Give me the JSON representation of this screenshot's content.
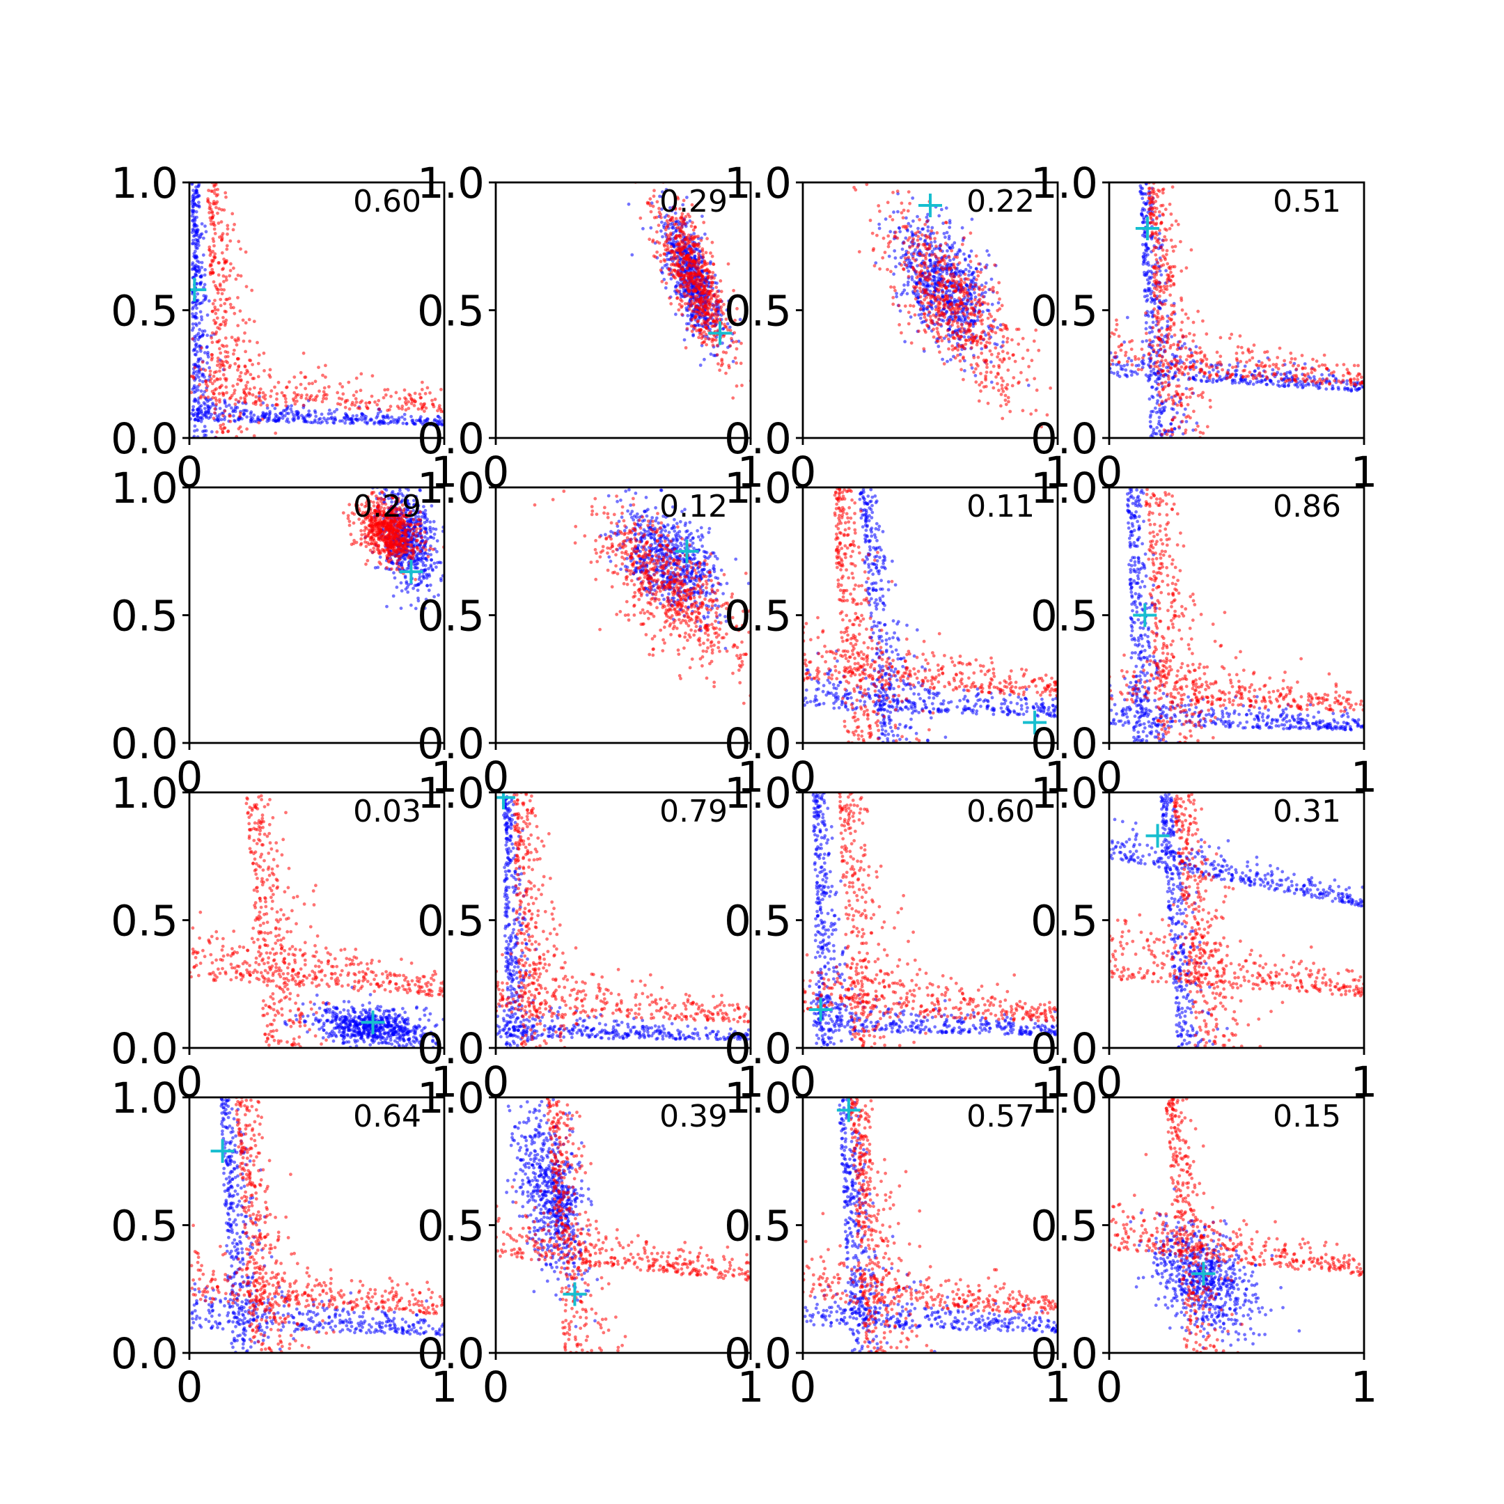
{
  "figure": {
    "background": "#ffffff",
    "series_colors": {
      "blue": "#0000ff",
      "red": "#ff0000",
      "marker": "#17becf"
    }
  },
  "chart_data": [
    {
      "type": "scatter",
      "value_label": "0.60",
      "marker": [
        0.02,
        0.58
      ],
      "xlim": [
        0,
        1
      ],
      "ylim": [
        0,
        1
      ],
      "xticks": [
        "0",
        "1"
      ],
      "yticks": [
        "0.0",
        "0.5",
        "1.0"
      ],
      "series": [
        {
          "color": "#0000ff",
          "shape": "L",
          "knee": [
            0.01,
            0.05
          ],
          "spread": 0.025,
          "n": 700
        },
        {
          "color": "#ff0000",
          "shape": "L",
          "knee": [
            0.07,
            0.1
          ],
          "spread": 0.06,
          "n": 550
        }
      ]
    },
    {
      "type": "scatter",
      "value_label": "0.29",
      "marker": [
        0.88,
        0.41
      ],
      "xlim": [
        0,
        1
      ],
      "ylim": [
        0,
        1
      ],
      "xticks": [
        "0",
        "1"
      ],
      "yticks": [
        "0.0",
        "0.5",
        "1.0"
      ],
      "series": [
        {
          "color": "#0000ff",
          "shape": "blob",
          "center": [
            0.77,
            0.62
          ],
          "sd": [
            0.06,
            0.13
          ],
          "rho": -0.7,
          "n": 650
        },
        {
          "color": "#ff0000",
          "shape": "blob",
          "center": [
            0.78,
            0.62
          ],
          "sd": [
            0.07,
            0.15
          ],
          "rho": -0.75,
          "n": 700
        }
      ]
    },
    {
      "type": "scatter",
      "value_label": "0.22",
      "marker": [
        0.5,
        0.91
      ],
      "xlim": [
        0,
        1
      ],
      "ylim": [
        0,
        1
      ],
      "xticks": [
        "0",
        "1"
      ],
      "yticks": [
        "0.0",
        "0.5",
        "1.0"
      ],
      "series": [
        {
          "color": "#0000ff",
          "shape": "blob",
          "center": [
            0.55,
            0.6
          ],
          "sd": [
            0.09,
            0.13
          ],
          "rho": -0.5,
          "n": 700
        },
        {
          "color": "#ff0000",
          "shape": "blob",
          "center": [
            0.6,
            0.52
          ],
          "sd": [
            0.14,
            0.17
          ],
          "rho": -0.75,
          "n": 650
        }
      ]
    },
    {
      "type": "scatter",
      "value_label": "0.51",
      "marker": [
        0.15,
        0.82
      ],
      "xlim": [
        0,
        1
      ],
      "ylim": [
        0,
        1
      ],
      "xticks": [
        "0",
        "1"
      ],
      "yticks": [
        "0.0",
        "0.5",
        "1.0"
      ],
      "series": [
        {
          "color": "#0000ff",
          "shape": "L",
          "knee": [
            0.12,
            0.18
          ],
          "spread": 0.04,
          "n": 650
        },
        {
          "color": "#ff0000",
          "shape": "L",
          "knee": [
            0.15,
            0.2
          ],
          "spread": 0.06,
          "n": 600
        }
      ]
    },
    {
      "type": "scatter",
      "value_label": "0.29",
      "marker": [
        0.87,
        0.67
      ],
      "xlim": [
        0,
        1
      ],
      "ylim": [
        0,
        1
      ],
      "xticks": [
        "0",
        "1"
      ],
      "yticks": [
        "0.0",
        "0.5",
        "1.0"
      ],
      "series": [
        {
          "color": "#0000ff",
          "shape": "blob",
          "center": [
            0.85,
            0.8
          ],
          "sd": [
            0.06,
            0.1
          ],
          "rho": -0.3,
          "n": 650
        },
        {
          "color": "#ff0000",
          "shape": "blob",
          "center": [
            0.78,
            0.83
          ],
          "sd": [
            0.06,
            0.06
          ],
          "rho": -0.3,
          "n": 700
        }
      ]
    },
    {
      "type": "scatter",
      "value_label": "0.12",
      "marker": [
        0.75,
        0.75
      ],
      "xlim": [
        0,
        1
      ],
      "ylim": [
        0,
        1
      ],
      "xticks": [
        "0",
        "1"
      ],
      "yticks": [
        "0.0",
        "0.5",
        "1.0"
      ],
      "series": [
        {
          "color": "#0000ff",
          "shape": "blob",
          "center": [
            0.68,
            0.72
          ],
          "sd": [
            0.1,
            0.1
          ],
          "rho": -0.5,
          "n": 650
        },
        {
          "color": "#ff0000",
          "shape": "blob",
          "center": [
            0.68,
            0.6
          ],
          "sd": [
            0.15,
            0.15
          ],
          "rho": -0.7,
          "n": 700
        }
      ]
    },
    {
      "type": "scatter",
      "value_label": "0.11",
      "marker": [
        0.91,
        0.08
      ],
      "xlim": [
        0,
        1
      ],
      "ylim": [
        0,
        1
      ],
      "xticks": [
        "0",
        "1"
      ],
      "yticks": [
        "0.0",
        "0.5",
        "1.0"
      ],
      "series": [
        {
          "color": "#0000ff",
          "shape": "L",
          "knee": [
            0.22,
            0.1
          ],
          "spread": 0.05,
          "n": 650
        },
        {
          "color": "#ff0000",
          "shape": "L",
          "knee": [
            0.12,
            0.18
          ],
          "spread": 0.07,
          "n": 650
        }
      ]
    },
    {
      "type": "scatter",
      "value_label": "0.86",
      "marker": [
        0.14,
        0.5
      ],
      "xlim": [
        0,
        1
      ],
      "ylim": [
        0,
        1
      ],
      "xticks": [
        "0",
        "1"
      ],
      "yticks": [
        "0.0",
        "0.5",
        "1.0"
      ],
      "series": [
        {
          "color": "#0000ff",
          "shape": "L",
          "knee": [
            0.07,
            0.05
          ],
          "spread": 0.04,
          "n": 650
        },
        {
          "color": "#ff0000",
          "shape": "L",
          "knee": [
            0.14,
            0.12
          ],
          "spread": 0.07,
          "n": 600
        }
      ]
    },
    {
      "type": "scatter",
      "value_label": "0.03",
      "marker": [
        0.72,
        0.1
      ],
      "xlim": [
        0,
        1
      ],
      "ylim": [
        0,
        1
      ],
      "xticks": [
        "0",
        "1"
      ],
      "yticks": [
        "0.0",
        "0.5",
        "1.0"
      ],
      "series": [
        {
          "color": "#0000ff",
          "shape": "blob",
          "center": [
            0.72,
            0.08
          ],
          "sd": [
            0.12,
            0.04
          ],
          "rho": -0.3,
          "n": 650
        },
        {
          "color": "#ff0000",
          "shape": "L",
          "knee": [
            0.22,
            0.2
          ],
          "spread": 0.07,
          "n": 650
        }
      ]
    },
    {
      "type": "scatter",
      "value_label": "0.79",
      "marker": [
        0.03,
        0.98
      ],
      "xlim": [
        0,
        1
      ],
      "ylim": [
        0,
        1
      ],
      "xticks": [
        "0",
        "1"
      ],
      "yticks": [
        "0.0",
        "0.5",
        "1.0"
      ],
      "series": [
        {
          "color": "#0000ff",
          "shape": "L",
          "knee": [
            0.03,
            0.03
          ],
          "spread": 0.03,
          "n": 650
        },
        {
          "color": "#ff0000",
          "shape": "L",
          "knee": [
            0.07,
            0.1
          ],
          "spread": 0.06,
          "n": 600
        }
      ]
    },
    {
      "type": "scatter",
      "value_label": "0.60",
      "marker": [
        0.07,
        0.15
      ],
      "xlim": [
        0,
        1
      ],
      "ylim": [
        0,
        1
      ],
      "xticks": [
        "0",
        "1"
      ],
      "yticks": [
        "0.0",
        "0.5",
        "1.0"
      ],
      "series": [
        {
          "color": "#0000ff",
          "shape": "L",
          "knee": [
            0.04,
            0.05
          ],
          "spread": 0.04,
          "n": 650
        },
        {
          "color": "#ff0000",
          "shape": "L",
          "knee": [
            0.14,
            0.1
          ],
          "spread": 0.07,
          "n": 600
        }
      ]
    },
    {
      "type": "scatter",
      "value_label": "0.31",
      "marker": [
        0.19,
        0.83
      ],
      "xlim": [
        0,
        1
      ],
      "ylim": [
        0,
        1
      ],
      "xticks": [
        "0",
        "1"
      ],
      "yticks": [
        "0.0",
        "0.5",
        "1.0"
      ],
      "series": [
        {
          "color": "#0000ff",
          "shape": "L",
          "knee": [
            0.2,
            0.55
          ],
          "spread": 0.04,
          "n": 650
        },
        {
          "color": "#ff0000",
          "shape": "L",
          "knee": [
            0.25,
            0.2
          ],
          "spread": 0.07,
          "n": 650
        }
      ]
    },
    {
      "type": "scatter",
      "value_label": "0.64",
      "marker": [
        0.13,
        0.79
      ],
      "xlim": [
        0,
        1
      ],
      "ylim": [
        0,
        1
      ],
      "xticks": [
        "0",
        "1"
      ],
      "yticks": [
        "0.0",
        "0.5",
        "1.0"
      ],
      "series": [
        {
          "color": "#0000ff",
          "shape": "L",
          "knee": [
            0.12,
            0.07
          ],
          "spread": 0.05,
          "n": 650
        },
        {
          "color": "#ff0000",
          "shape": "L",
          "knee": [
            0.18,
            0.15
          ],
          "spread": 0.06,
          "n": 650
        }
      ]
    },
    {
      "type": "scatter",
      "value_label": "0.39",
      "marker": [
        0.31,
        0.23
      ],
      "xlim": [
        0,
        1
      ],
      "ylim": [
        0,
        1
      ],
      "xticks": [
        "0",
        "1"
      ],
      "yticks": [
        "0.0",
        "0.5",
        "1.0"
      ],
      "series": [
        {
          "color": "#0000ff",
          "shape": "blob",
          "center": [
            0.22,
            0.62
          ],
          "sd": [
            0.07,
            0.17
          ],
          "rho": -0.5,
          "n": 650
        },
        {
          "color": "#ff0000",
          "shape": "L",
          "knee": [
            0.2,
            0.28
          ],
          "spread": 0.06,
          "n": 650
        }
      ]
    },
    {
      "type": "scatter",
      "value_label": "0.57",
      "marker": [
        0.18,
        0.95
      ],
      "xlim": [
        0,
        1
      ],
      "ylim": [
        0,
        1
      ],
      "xticks": [
        "0",
        "1"
      ],
      "yticks": [
        "0.0",
        "0.5",
        "1.0"
      ],
      "series": [
        {
          "color": "#0000ff",
          "shape": "L",
          "knee": [
            0.14,
            0.08
          ],
          "spread": 0.05,
          "n": 650
        },
        {
          "color": "#ff0000",
          "shape": "L",
          "knee": [
            0.18,
            0.15
          ],
          "spread": 0.06,
          "n": 650
        }
      ]
    },
    {
      "type": "scatter",
      "value_label": "0.15",
      "marker": [
        0.37,
        0.31
      ],
      "xlim": [
        0,
        1
      ],
      "ylim": [
        0,
        1
      ],
      "xticks": [
        "0",
        "1"
      ],
      "yticks": [
        "0.0",
        "0.5",
        "1.0"
      ],
      "series": [
        {
          "color": "#0000ff",
          "shape": "blob",
          "center": [
            0.38,
            0.28
          ],
          "sd": [
            0.1,
            0.1
          ],
          "rho": -0.4,
          "n": 650
        },
        {
          "color": "#ff0000",
          "shape": "L",
          "knee": [
            0.22,
            0.3
          ],
          "spread": 0.06,
          "n": 650
        }
      ]
    }
  ]
}
